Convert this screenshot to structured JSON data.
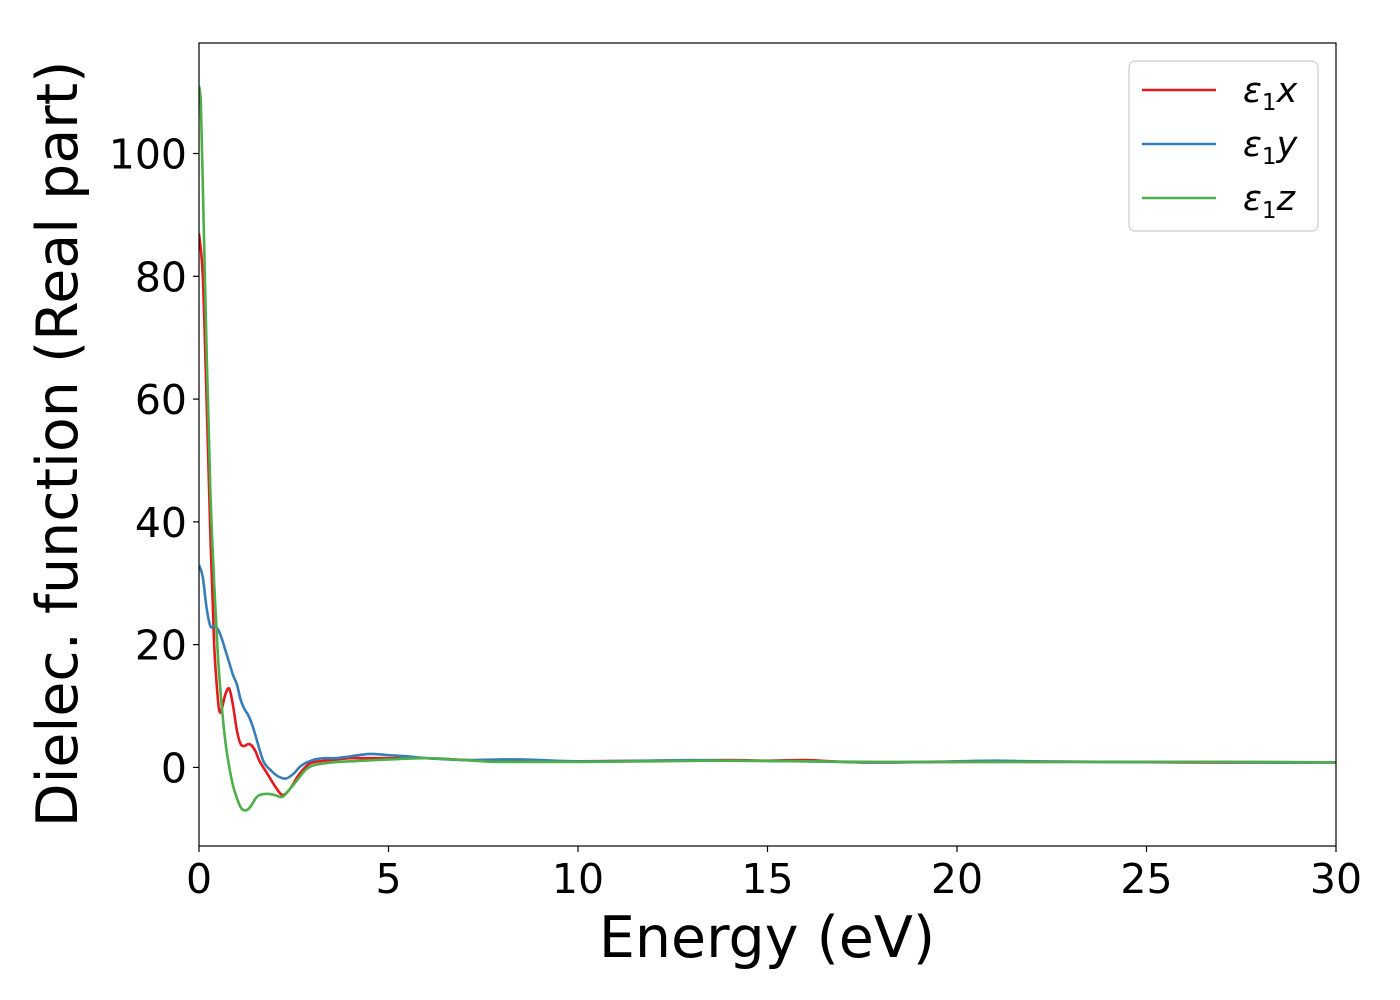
{
  "chart_data": {
    "type": "line",
    "xlabel": "Energy (eV)",
    "ylabel": "Dielec. function (Real part)",
    "xlim": [
      0,
      30
    ],
    "ylim": [
      -12.8,
      118
    ],
    "xticks": [
      0,
      5,
      10,
      15,
      20,
      25,
      30
    ],
    "yticks": [
      0,
      20,
      40,
      60,
      80,
      100
    ],
    "grid": false,
    "legend_position": "top-right",
    "series": [
      {
        "name": "ε1x",
        "label_symbol": "ε",
        "label_sub": "1",
        "label_var": "x",
        "color": "#e41a1c",
        "x": [
          0,
          0.1,
          0.2,
          0.3,
          0.4,
          0.5,
          0.55,
          0.6,
          0.7,
          0.8,
          0.9,
          1.0,
          1.1,
          1.2,
          1.3,
          1.4,
          1.5,
          1.6,
          1.8,
          2.0,
          2.2,
          2.4,
          2.6,
          2.8,
          3.0,
          3.5,
          4.0,
          4.5,
          5.0,
          6.0,
          7.0,
          8.0,
          9.0,
          10.0,
          12.0,
          14.0,
          15.0,
          16.0,
          17.0,
          18.0,
          20.0,
          22.0,
          24.0,
          26.0,
          28.0,
          30.0
        ],
        "y": [
          87,
          80,
          60,
          38,
          20,
          11,
          9,
          9.5,
          12,
          12.8,
          10,
          6,
          3.8,
          3.5,
          3.8,
          3.5,
          2.5,
          1,
          -1,
          -3,
          -4.5,
          -3.5,
          -1.5,
          0,
          0.8,
          1.2,
          1.5,
          1.5,
          1.5,
          1.5,
          1.2,
          1.0,
          1.0,
          1.0,
          1.1,
          1.2,
          1.1,
          1.2,
          0.9,
          0.8,
          0.9,
          0.9,
          0.9,
          0.8,
          0.8,
          0.8
        ]
      },
      {
        "name": "ε1y",
        "label_symbol": "ε",
        "label_sub": "1",
        "label_var": "y",
        "color": "#377eb8",
        "x": [
          0,
          0.1,
          0.2,
          0.3,
          0.4,
          0.5,
          0.6,
          0.7,
          0.8,
          0.9,
          1.0,
          1.1,
          1.2,
          1.3,
          1.4,
          1.5,
          1.7,
          1.9,
          2.1,
          2.3,
          2.5,
          2.7,
          3.0,
          3.3,
          3.6,
          4.0,
          4.5,
          5.0,
          5.5,
          6.0,
          7.0,
          8.0,
          8.5,
          9.0,
          10.0,
          12.0,
          13.0,
          14.0,
          16.0,
          18.0,
          20.0,
          21.0,
          22.0,
          24.0,
          26.0,
          28.0,
          30.0
        ],
        "y": [
          33,
          31,
          26,
          23,
          23,
          22.5,
          21,
          19,
          17,
          15,
          13.5,
          11,
          9.5,
          8.5,
          7,
          5,
          1,
          -0.5,
          -1.5,
          -1.8,
          -1,
          0.3,
          1.2,
          1.5,
          1.5,
          1.8,
          2.2,
          2.0,
          1.8,
          1.5,
          1.2,
          1.3,
          1.3,
          1.2,
          1.0,
          1.1,
          1.2,
          1.1,
          1.0,
          0.8,
          1.0,
          1.1,
          1.0,
          0.9,
          0.9,
          0.8,
          0.8
        ]
      },
      {
        "name": "ε1z",
        "label_symbol": "ε",
        "label_sub": "1",
        "label_var": "z",
        "color": "#4daf4a",
        "x": [
          0,
          0.05,
          0.1,
          0.2,
          0.3,
          0.4,
          0.5,
          0.6,
          0.7,
          0.8,
          0.9,
          1.0,
          1.1,
          1.2,
          1.3,
          1.4,
          1.5,
          1.6,
          1.8,
          2.0,
          2.2,
          2.4,
          2.6,
          2.8,
          3.0,
          3.5,
          4.0,
          5.0,
          6.0,
          7.0,
          7.5,
          8.0,
          10.0,
          12.0,
          14.0,
          16.0,
          18.0,
          20.0,
          22.0,
          24.0,
          26.0,
          28.0,
          30.0
        ],
        "y": [
          111,
          108,
          95,
          68,
          45,
          30,
          18,
          10,
          4,
          0,
          -3,
          -5,
          -6.5,
          -7,
          -6.8,
          -6,
          -5,
          -4.5,
          -4.3,
          -4.5,
          -4.8,
          -3.5,
          -2,
          -0.5,
          0.3,
          0.8,
          1.0,
          1.3,
          1.5,
          1.2,
          1.0,
          0.9,
          0.9,
          1.0,
          1.1,
          1.0,
          0.9,
          0.9,
          0.9,
          0.9,
          0.9,
          0.9,
          0.8
        ]
      }
    ]
  }
}
